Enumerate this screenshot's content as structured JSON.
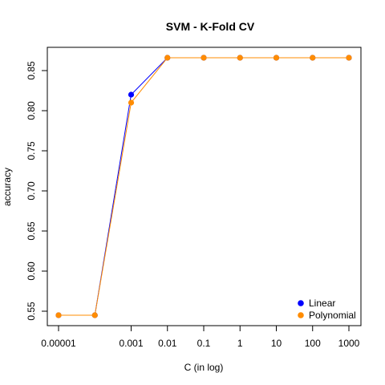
{
  "chart_data": {
    "type": "line",
    "title": "SVM - K-Fold CV",
    "xlabel": "C (in log)",
    "ylabel": "accuracy",
    "x_scale": "log10",
    "x_ticks": [
      {
        "value": 1e-05,
        "label": "0.00001"
      },
      {
        "value": 0.001,
        "label": "0.001"
      },
      {
        "value": 0.01,
        "label": "0.01"
      },
      {
        "value": 0.1,
        "label": "0.1"
      },
      {
        "value": 1,
        "label": "1"
      },
      {
        "value": 10,
        "label": "10"
      },
      {
        "value": 100,
        "label": "100"
      },
      {
        "value": 1000,
        "label": "1000"
      }
    ],
    "y_ticks": [
      {
        "value": 0.55,
        "label": "0.55"
      },
      {
        "value": 0.6,
        "label": "0.60"
      },
      {
        "value": 0.65,
        "label": "0.65"
      },
      {
        "value": 0.7,
        "label": "0.70"
      },
      {
        "value": 0.75,
        "label": "0.75"
      },
      {
        "value": 0.8,
        "label": "0.80"
      },
      {
        "value": 0.85,
        "label": "0.85"
      }
    ],
    "xlim": [
      1e-05,
      1000
    ],
    "ylim": [
      0.545,
      0.866
    ],
    "grid": false,
    "legend_position": "bottom-right",
    "x": [
      1e-05,
      0.0001,
      0.001,
      0.01,
      0.1,
      1,
      10,
      100,
      1000
    ],
    "series": [
      {
        "name": "Linear",
        "color": "#0000ff",
        "values": [
          0.545,
          0.545,
          0.82,
          0.866,
          0.866,
          0.866,
          0.866,
          0.866,
          0.866
        ]
      },
      {
        "name": "Polynomial",
        "color": "#ff8c00",
        "values": [
          0.545,
          0.545,
          0.81,
          0.866,
          0.866,
          0.866,
          0.866,
          0.866,
          0.866
        ]
      }
    ]
  }
}
